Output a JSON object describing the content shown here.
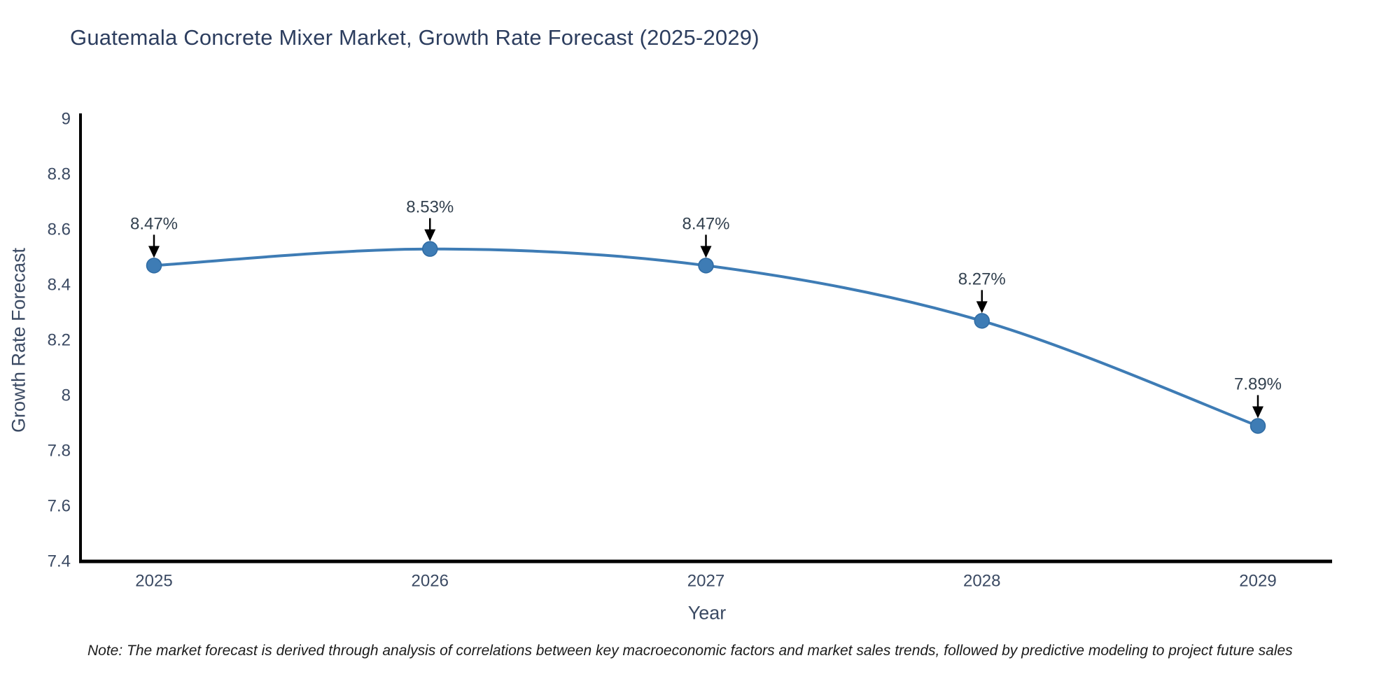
{
  "title": "Guatemala Concrete Mixer Market, Growth Rate Forecast (2025-2029)",
  "note": "Note: The market forecast is derived through analysis of correlations between key macroeconomic factors and market sales trends, followed by predictive modeling to project future sales",
  "chart_data": {
    "type": "line",
    "title": "Guatemala Concrete Mixer Market, Growth Rate Forecast (2025-2029)",
    "xlabel": "Year",
    "ylabel": "Growth Rate Forecast",
    "x": [
      2025,
      2026,
      2027,
      2028,
      2029
    ],
    "y": [
      8.47,
      8.53,
      8.47,
      8.27,
      7.89
    ],
    "labels": [
      "8.47%",
      "8.53%",
      "8.47%",
      "8.27%",
      "7.89%"
    ],
    "ylim": [
      7.4,
      9
    ],
    "yticks": [
      7.4,
      7.6,
      7.8,
      8,
      8.2,
      8.4,
      8.6,
      8.8,
      9
    ],
    "grid": false,
    "legend": "none",
    "line_color": "#3e7cb5",
    "marker_color": "#3e7cb5",
    "marker_edge_color": "#2f6ba3",
    "axis_color": "#000000",
    "tick_text_color": "#3b4a63",
    "annotation_text_color": "#33414f",
    "annotation_arrow_color": "#000000"
  }
}
